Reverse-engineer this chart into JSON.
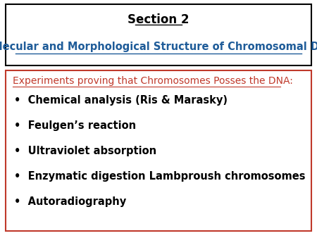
{
  "title_line1": "Section 2",
  "title_line2": "Molecular and Morphological Structure of Chromosomal DNA",
  "title_color": "#000000",
  "title_link_color": "#1F5C99",
  "bg_color": "#ffffff",
  "header_box_edge": "#000000",
  "content_box_edge": "#C0392B",
  "subtitle": "Experiments proving that Chromosomes Posses the DNA:",
  "subtitle_color": "#C0392B",
  "bullet_points": [
    "Chemical analysis (Ris & Marasky)",
    "Feulgen’s reaction",
    "Ultraviolet absorption",
    "Enzymatic digestion Lambproush chromosomes",
    "Autoradiography"
  ],
  "bullet_color": "#000000",
  "bullet_fontsize": 10.5,
  "subtitle_fontsize": 10,
  "title1_fontsize": 12,
  "title2_fontsize": 10.5
}
